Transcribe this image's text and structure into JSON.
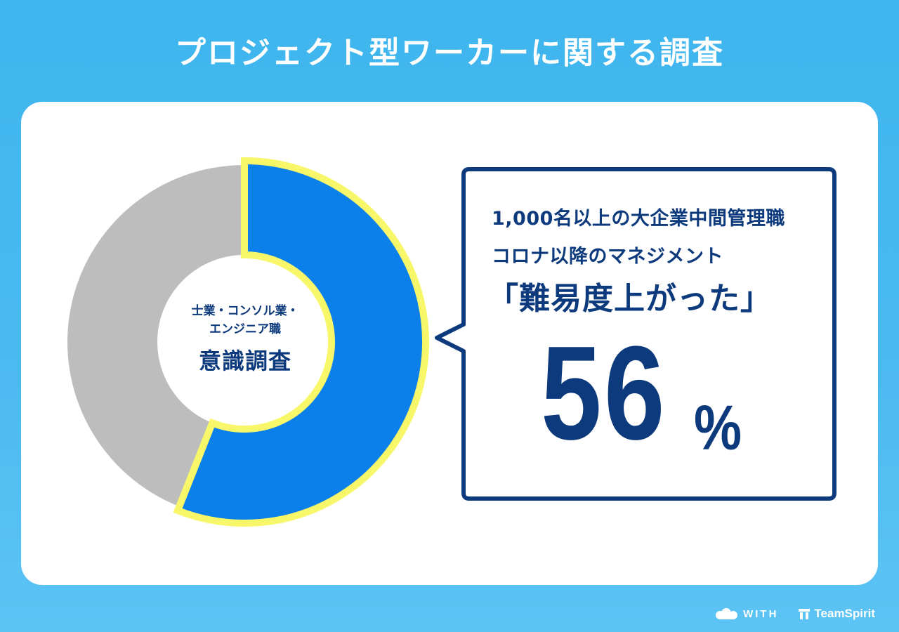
{
  "title": "プロジェクト型ワーカーに関する調査",
  "donut": {
    "center_small_1": "士業・コンソル業・",
    "center_small_2": "エンジニア職",
    "center_big": "意識調査"
  },
  "callout": {
    "line1": "1,000名以上の大企業中間管理職",
    "line2": "コロナ以降のマネジメント",
    "line3": "「難易度上がった」",
    "value": "56",
    "unit": "%"
  },
  "logos": {
    "with": "WITH",
    "teamspirit": "TeamSpirit"
  },
  "colors": {
    "background": "#45b8ef",
    "highlight_slice": "#0b7fea",
    "highlight_outline": "#f8f76a",
    "rest_slice": "#bdbdbd",
    "text_dark": "#0d3a7c"
  },
  "chart_data": {
    "type": "pie",
    "title": "",
    "slices": [
      {
        "label": "",
        "value": 56,
        "color": "#0b7fea",
        "highlighted": true
      },
      {
        "label": "",
        "value": 44,
        "color": "#bdbdbd",
        "highlighted": false
      }
    ]
  }
}
